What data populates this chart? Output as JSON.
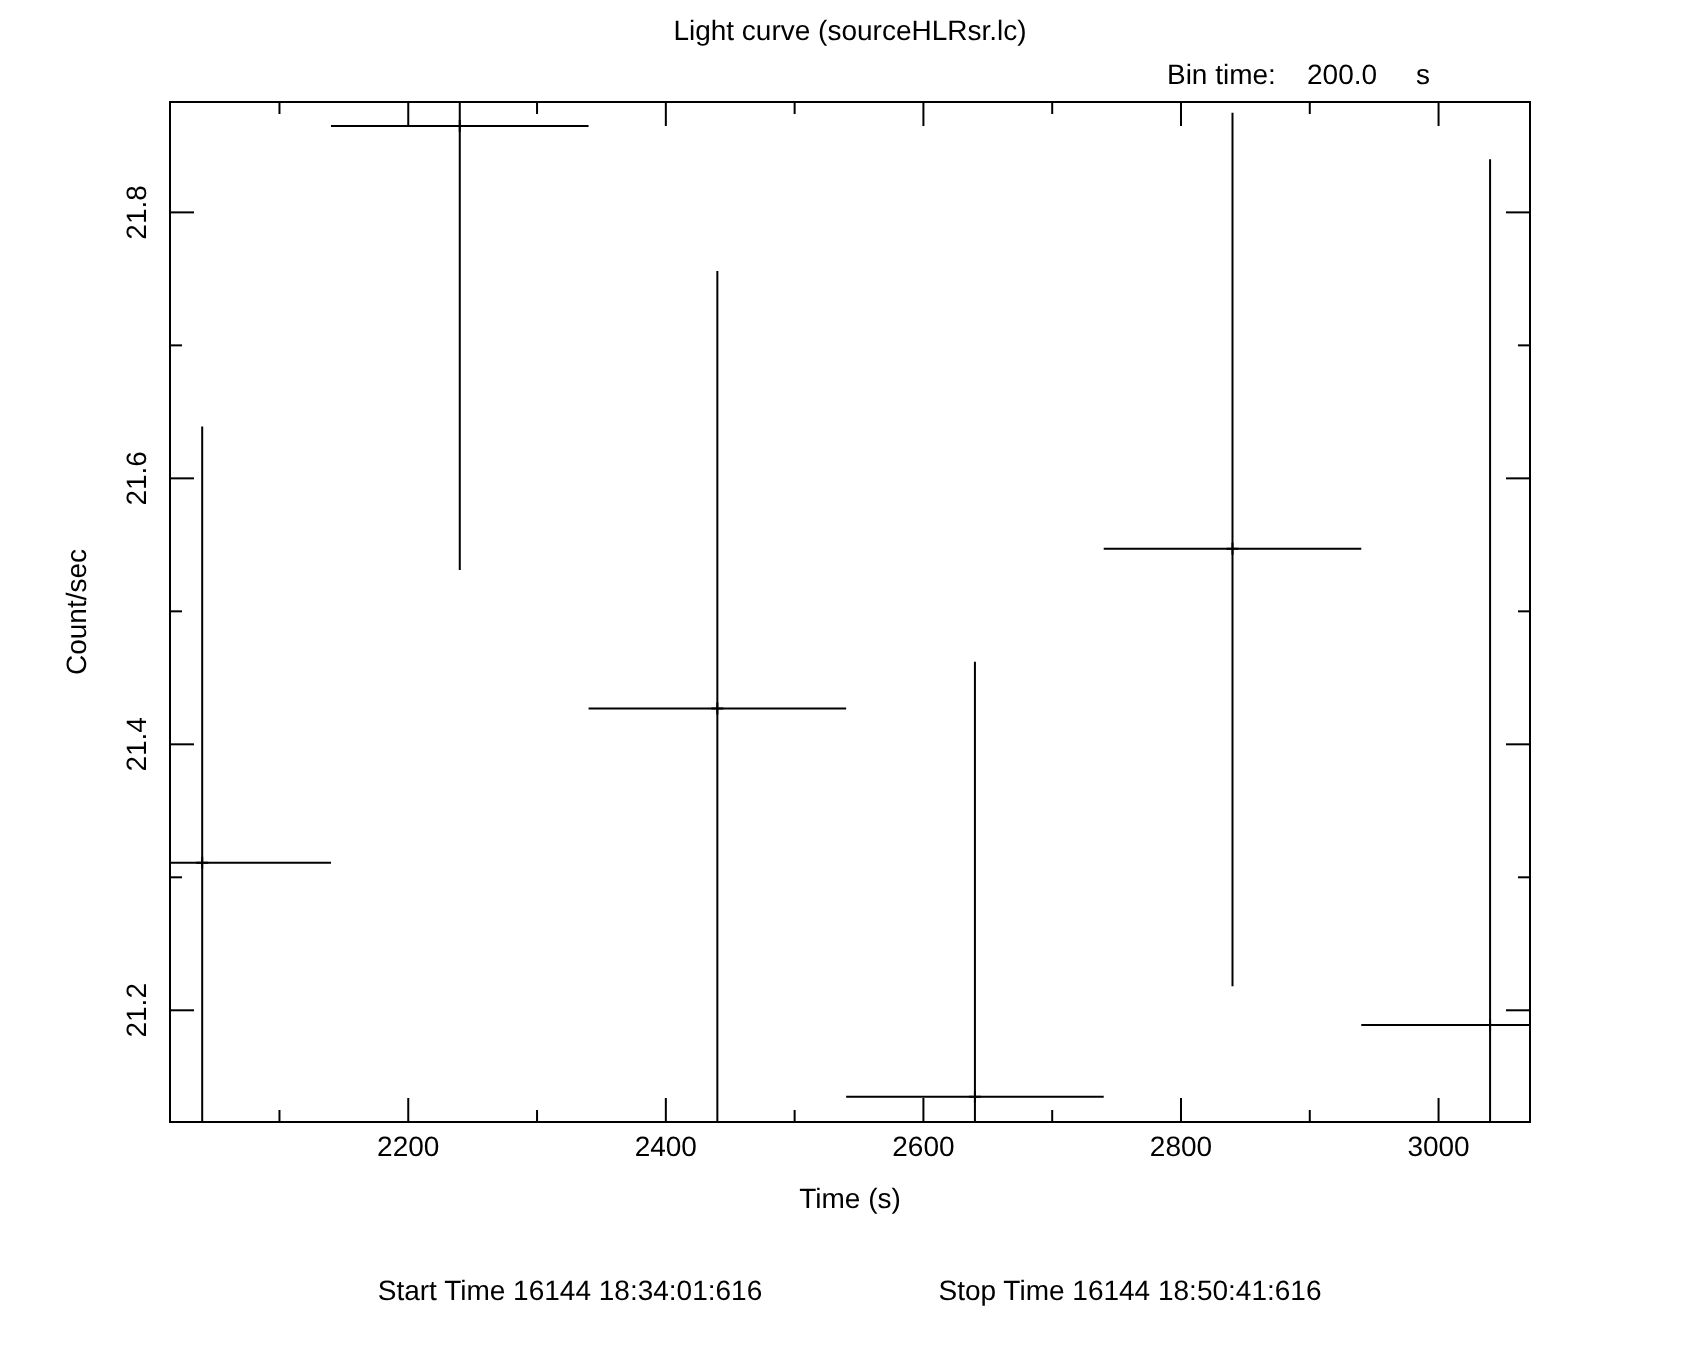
{
  "chart_data": {
    "type": "scatter",
    "title": "Light curve (sourceHLRsr.lc)",
    "subtitle": "Bin time:    200.0     s",
    "xlabel": "Time (s)",
    "ylabel": "Count/sec",
    "annotations": [
      "Start Time 16144 18:34:01:616",
      "Stop Time 16144 18:50:41:616"
    ],
    "x": [
      2040,
      2240,
      2440,
      2640,
      2840,
      3040
    ],
    "values": [
      21.311,
      21.865,
      21.427,
      21.135,
      21.547,
      21.189
    ],
    "errors": [
      [
        21.116,
        21.639
      ],
      [
        21.531,
        21.883
      ],
      [
        21.116,
        21.756
      ],
      [
        21.116,
        21.462
      ],
      [
        21.218,
        21.875
      ],
      [
        21.116,
        21.84
      ]
    ],
    "xerrors": [
      [
        2015,
        2140
      ],
      [
        2140,
        2340
      ],
      [
        2340,
        2540
      ],
      [
        2540,
        2740
      ],
      [
        2740,
        2940
      ],
      [
        2940,
        3071
      ]
    ],
    "color": "#000000",
    "marker": "cross",
    "grid": false,
    "xlim": [
      2015,
      3071
    ],
    "ylim": [
      21.116,
      21.883
    ],
    "xticks": [
      {
        "value": 2100,
        "label": null
      },
      2200,
      {
        "value": 2300,
        "label": null
      },
      2400,
      {
        "value": 2500,
        "label": null
      },
      2600,
      {
        "value": 2700,
        "label": null
      },
      2800,
      {
        "value": 2900,
        "label": null
      },
      3000
    ],
    "yticks": [
      21.2,
      {
        "value": 21.3,
        "label": null
      },
      21.4,
      {
        "value": 21.5,
        "label": null
      },
      21.6,
      {
        "value": 21.7,
        "label": null
      },
      21.8
    ]
  }
}
